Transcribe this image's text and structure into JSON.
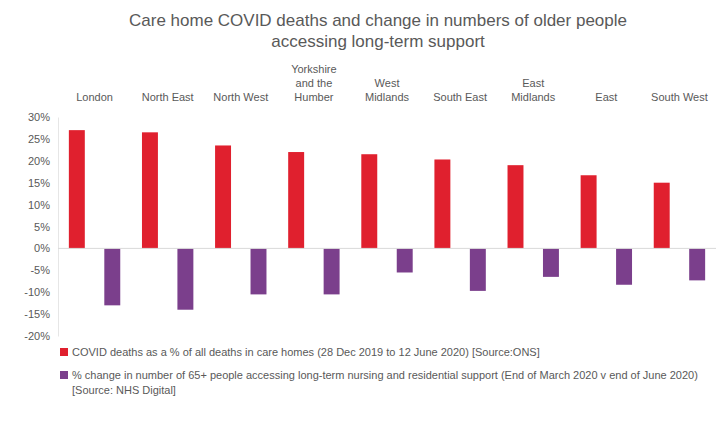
{
  "chart_data": {
    "type": "bar",
    "title": "Care home COVID deaths and change in numbers of older people accessing long-term support",
    "categories": [
      "London",
      "North East",
      "North West",
      "Yorkshire and the Humber",
      "West Midlands",
      "South East",
      "East Midlands",
      "East",
      "South West"
    ],
    "series": [
      {
        "name": "COVID deaths as a % of all deaths in care homes (28 Dec 2019 to 12 June 2020) [Source:ONS]",
        "color": "#e0202e",
        "values": [
          27,
          26.5,
          23.5,
          22,
          21.5,
          20.3,
          19,
          16.7,
          15
        ]
      },
      {
        "name": "% change in number of 65+ people accessing long-term nursing and residential support (End of March 2020 v end of June 2020) [Source: NHS Digital]",
        "color": "#7b3f8c",
        "values": [
          -13,
          -14,
          -10.5,
          -10.5,
          -5.5,
          -9.7,
          -6.5,
          -8.3,
          -7.3
        ]
      }
    ],
    "ylim": [
      -20,
      30
    ],
    "yticks": [
      {
        "value": -20,
        "label": "-20%"
      },
      {
        "value": -15,
        "label": "-15%"
      },
      {
        "value": -10,
        "label": "-10%"
      },
      {
        "value": -5,
        "label": "-5%"
      },
      {
        "value": 0,
        "label": "0%"
      },
      {
        "value": 5,
        "label": "5%"
      },
      {
        "value": 10,
        "label": "10%"
      },
      {
        "value": 15,
        "label": "15%"
      },
      {
        "value": 20,
        "label": "20%"
      },
      {
        "value": 25,
        "label": "25%"
      },
      {
        "value": 30,
        "label": "30%"
      }
    ],
    "grid": false,
    "legend": "bottom"
  }
}
